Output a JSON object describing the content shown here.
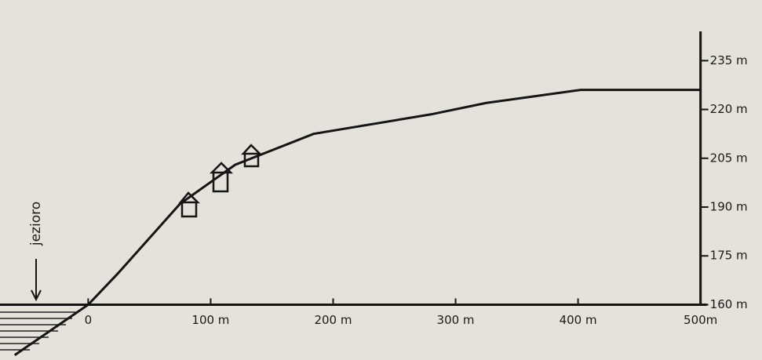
{
  "chart_data": {
    "type": "line",
    "annotation": "jezioro",
    "x": [
      -60,
      0,
      24,
      75,
      120,
      184,
      280,
      325,
      402,
      500
    ],
    "values": [
      144.5,
      160,
      169.5,
      191,
      203,
      212.5,
      218.5,
      222,
      226,
      226
    ],
    "color": "#151515",
    "xlim": [
      -72,
      522
    ],
    "ylim": [
      143,
      244
    ],
    "xticks": [
      0,
      {
        "value": 100,
        "label": "100 m"
      },
      {
        "value": 200,
        "label": "200 m"
      },
      {
        "value": 300,
        "label": "300 m"
      },
      {
        "value": 400,
        "label": "400 m"
      },
      {
        "value": 500,
        "label": "500m"
      }
    ],
    "yticks": [
      {
        "value": 160,
        "label": "160 m"
      },
      {
        "value": 175,
        "label": "175 m"
      },
      {
        "value": 190,
        "label": "190 m"
      },
      {
        "value": 205,
        "label": "205 m"
      },
      {
        "value": 220,
        "label": "220 m"
      },
      {
        "value": 235,
        "label": "235 m"
      }
    ]
  }
}
